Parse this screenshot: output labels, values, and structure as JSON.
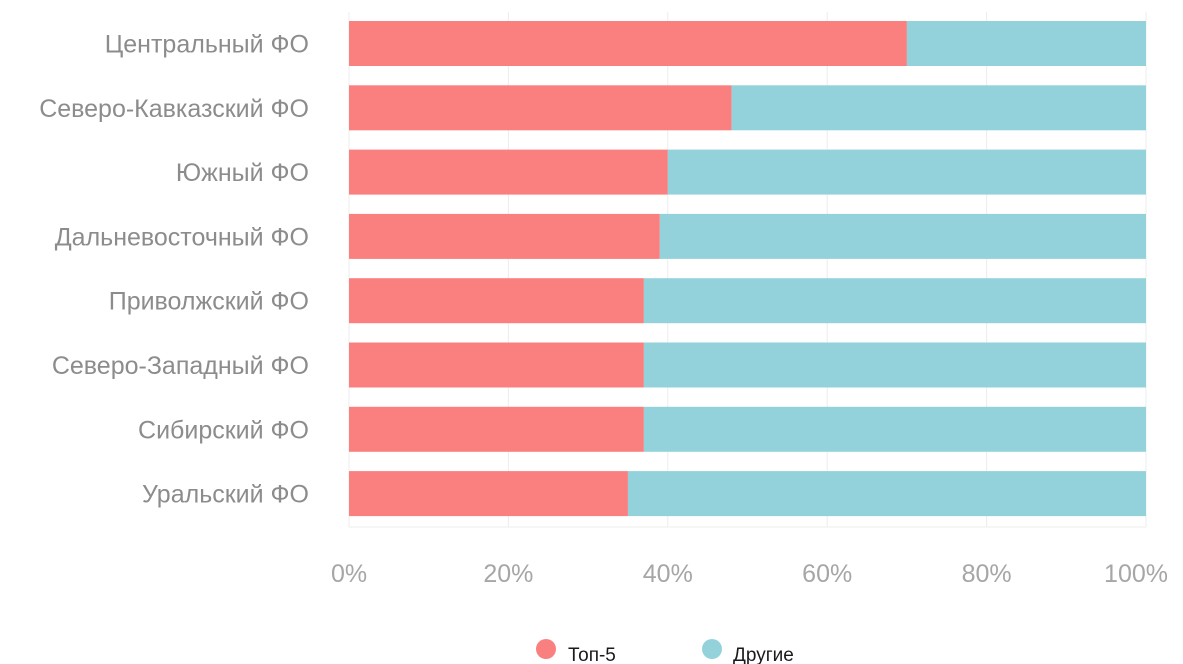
{
  "chart_data": {
    "type": "bar",
    "orientation": "horizontal",
    "stacked": true,
    "categories": [
      "Центральный ФО",
      "Северо-Кавказский ФО",
      "Южный ФО",
      "Дальневосточный ФО",
      "Приволжский ФО",
      "Северо-Западный ФО",
      "Сибирский ФО",
      "Уральский ФО"
    ],
    "series": [
      {
        "name": "Топ-5",
        "color": "#fa8080",
        "values": [
          70,
          48,
          40,
          39,
          37,
          37,
          37,
          35
        ]
      },
      {
        "name": "Другие",
        "color": "#94d2db",
        "values": [
          30,
          52,
          60,
          61,
          63,
          63,
          63,
          65
        ]
      }
    ],
    "xlim": [
      0,
      100
    ],
    "xticks": [
      0,
      20,
      40,
      60,
      80,
      100
    ],
    "xtick_labels": [
      "0%",
      "20%",
      "40%",
      "60%",
      "80%",
      "100%"
    ],
    "grid": true,
    "legend_position": "bottom",
    "title": "",
    "xlabel": "",
    "ylabel": ""
  }
}
